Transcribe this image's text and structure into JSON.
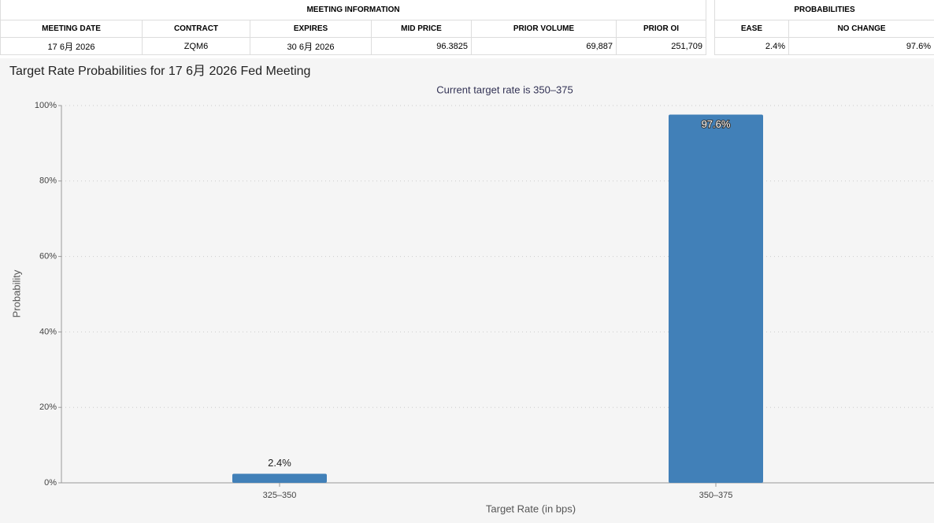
{
  "meeting_table": {
    "title": "MEETING INFORMATION",
    "columns": [
      "MEETING DATE",
      "CONTRACT",
      "EXPIRES",
      "MID PRICE",
      "PRIOR VOLUME",
      "PRIOR OI"
    ],
    "rows": [
      [
        "17 6月 2026",
        "ZQM6",
        "30 6月 2026",
        "96.3825",
        "69,887",
        "251,709"
      ]
    ]
  },
  "probabilities_table": {
    "title": "PROBABILITIES",
    "columns": [
      "EASE",
      "NO CHANGE"
    ],
    "rows": [
      [
        "2.4%",
        "97.6%"
      ]
    ]
  },
  "chart_data": {
    "type": "bar",
    "title": "Target Rate Probabilities for 17 6月 2026 Fed Meeting",
    "subtitle": "Current target rate is 350–375",
    "x_label": "Target Rate (in bps)",
    "y_label": "Probability",
    "categories": [
      "325–350",
      "350–375"
    ],
    "values": [
      2.4,
      97.6
    ],
    "value_labels": [
      "2.4%",
      "97.6%"
    ],
    "color": "#4180b8",
    "ylim": [
      0,
      100
    ],
    "yticks": [
      {
        "value": 0,
        "label": "0%"
      },
      {
        "value": 20,
        "label": "20%"
      },
      {
        "value": 40,
        "label": "40%"
      },
      {
        "value": 60,
        "label": "60%"
      },
      {
        "value": 80,
        "label": "80%"
      },
      {
        "value": 100,
        "label": "100%"
      }
    ],
    "grid": true
  }
}
